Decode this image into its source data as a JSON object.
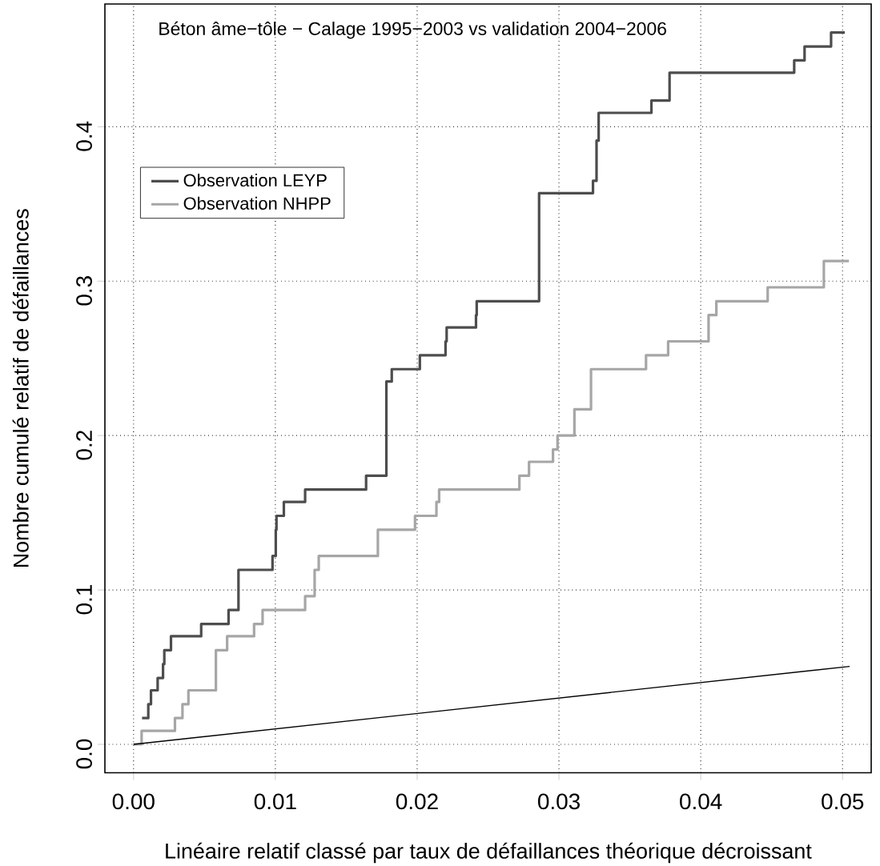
{
  "chart_data": {
    "type": "step",
    "title": "Béton âme−tôle − Calage 1995−2003 vs validation 2004−2006",
    "xlabel": "Linéaire relatif classé par taux de défaillances théorique décroissant",
    "ylabel": "Nombre cumulé relatif de défaillances",
    "series": [
      {
        "name": "Observation LEYP",
        "color": "#4d4d4d",
        "x": [
          0.0006,
          0.00104,
          0.00123,
          0.0017,
          0.00208,
          0.00217,
          0.00264,
          0.00477,
          0.0067,
          0.0074,
          0.0098,
          0.01003,
          0.01008,
          0.0106,
          0.0121,
          0.0164,
          0.01783,
          0.01821,
          0.02019,
          0.022,
          0.02208,
          0.02415,
          0.0242,
          0.0286,
          0.0324,
          0.03265,
          0.0328,
          0.03652,
          0.0378,
          0.04659,
          0.04732,
          0.04919,
          0.05016
        ],
        "values": [
          0.017,
          0.026,
          0.035,
          0.043,
          0.052,
          0.061,
          0.07,
          0.078,
          0.087,
          0.113,
          0.122,
          0.139,
          0.148,
          0.157,
          0.165,
          0.174,
          0.235,
          0.243,
          0.252,
          0.261,
          0.27,
          0.278,
          0.287,
          0.357,
          0.365,
          0.391,
          0.409,
          0.417,
          0.435,
          0.443,
          0.452,
          0.461,
          0.461
        ]
      },
      {
        "name": "Observation NHPP",
        "color": "#a6a6a6",
        "x": [
          0,
          0.00057,
          0.00292,
          0.00345,
          0.00387,
          0.00581,
          0.0066,
          0.0085,
          0.0091,
          0.0121,
          0.01277,
          0.01306,
          0.01723,
          0.01985,
          0.02136,
          0.02155,
          0.02721,
          0.02789,
          0.02958,
          0.0299,
          0.03109,
          0.03226,
          0.03614,
          0.0377,
          0.04055,
          0.0411,
          0.04472,
          0.04868,
          0.05045
        ],
        "values": [
          0,
          0.0087,
          0.017,
          0.026,
          0.035,
          0.061,
          0.07,
          0.078,
          0.087,
          0.096,
          0.113,
          0.122,
          0.139,
          0.148,
          0.157,
          0.165,
          0.174,
          0.183,
          0.191,
          0.2,
          0.217,
          0.243,
          0.252,
          0.261,
          0.278,
          0.287,
          0.296,
          0.313,
          0.313
        ]
      },
      {
        "type": "line",
        "color": "#000000",
        "x": [
          0,
          0.0505
        ],
        "values": [
          0,
          0.0505
        ]
      }
    ],
    "xlim": [
      -0.00202,
      0.05202
    ],
    "ylim": [
      -0.0184,
      0.4795
    ],
    "xticks": [
      {
        "value": 0,
        "label": "0.00"
      },
      {
        "value": 0.01,
        "label": "0.01"
      },
      {
        "value": 0.02,
        "label": "0.02"
      },
      {
        "value": 0.03,
        "label": "0.03"
      },
      {
        "value": 0.04,
        "label": "0.04"
      },
      {
        "value": 0.05,
        "label": "0.05"
      }
    ],
    "yticks": [
      {
        "value": 0,
        "label": "0.0"
      },
      {
        "value": 0.1,
        "label": "0.1"
      },
      {
        "value": 0.2,
        "label": "0.2"
      },
      {
        "value": 0.3,
        "label": "0.3"
      },
      {
        "value": 0.4,
        "label": "0.4"
      }
    ],
    "grid": true,
    "legend": "left",
    "line_style": "solid"
  }
}
